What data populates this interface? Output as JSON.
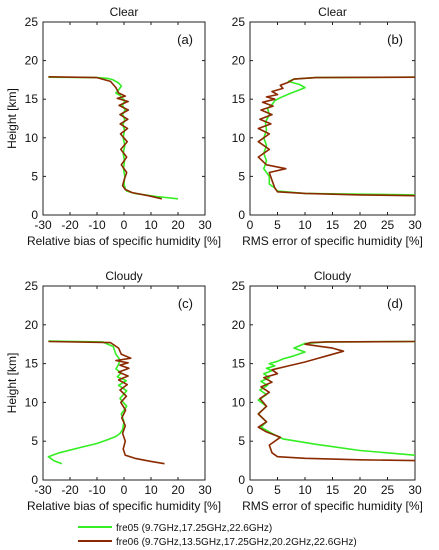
{
  "chart_data": [
    {
      "type": "line",
      "title": "Clear",
      "panel_label": "(a)",
      "xlabel": "Relative bias of specific humidity [%]",
      "ylabel": "Height [km]",
      "xlim": [
        -30,
        30
      ],
      "ylim": [
        0,
        25
      ],
      "xticks": [
        "-30",
        "-20",
        "-10",
        "0",
        "10",
        "20",
        "30"
      ],
      "yticks": [
        "0",
        "5",
        "10",
        "15",
        "20",
        "25"
      ],
      "grid": false,
      "series": [
        {
          "name": "fre05 (9.7GHz,17.25GHz,22.6GHz)",
          "color": "#33ee22",
          "x": [
            20,
            12,
            4,
            1,
            0.5,
            0,
            0.3,
            -0.2,
            0.2,
            -0.3,
            0.3,
            -0.3,
            0.2,
            -0.4,
            0.3,
            -0.5,
            0.4,
            -0.6,
            0.3,
            -0.8,
            -1.5,
            -3,
            -2,
            -1,
            -2,
            -4,
            -6,
            -10,
            -28
          ],
          "y": [
            2.1,
            2.4,
            2.8,
            3.1,
            3.4,
            4,
            5,
            6,
            7,
            8,
            9,
            10,
            11,
            11.7,
            12.3,
            13,
            13.6,
            14.2,
            14.8,
            15.2,
            15.5,
            15.8,
            16.2,
            16.7,
            17.1,
            17.5,
            17.7,
            17.8,
            17.85
          ]
        },
        {
          "name": "fre06 (9.7GHz,13.5GHz,17.25GHz,20.2GHz,22.6GHz)",
          "color": "#8b2a00",
          "x": [
            14,
            9,
            3,
            0.5,
            -0.5,
            0,
            1,
            -1,
            1,
            -1.2,
            1.2,
            -1.3,
            1.3,
            -1.4,
            1.4,
            -1.5,
            1.6,
            -1.8,
            1.5,
            -2.5,
            0.5,
            -2,
            -3,
            -5,
            -10,
            -28
          ],
          "y": [
            2.1,
            2.5,
            2.9,
            3.3,
            3.8,
            4.5,
            5.5,
            6.5,
            7.5,
            8.5,
            9.5,
            10.5,
            11.2,
            11.8,
            12.4,
            13,
            13.6,
            14.2,
            14.7,
            15.1,
            15.4,
            15.8,
            16.5,
            17.3,
            17.8,
            17.9
          ]
        }
      ]
    },
    {
      "type": "line",
      "title": "Clear",
      "panel_label": "(b)",
      "xlabel": "RMS error of specific humidity [%]",
      "ylabel": "",
      "xlim": [
        0,
        30
      ],
      "ylim": [
        0,
        25
      ],
      "xticks": [
        "0",
        "5",
        "10",
        "15",
        "20",
        "25",
        "30"
      ],
      "yticks": [
        "0",
        "5",
        "10",
        "15",
        "20",
        "25"
      ],
      "grid": false,
      "series": [
        {
          "name": "fre05 (9.7GHz,17.25GHz,22.6GHz)",
          "color": "#33ee22",
          "x": [
            30,
            20,
            10,
            5,
            4.5,
            3.5,
            3.5,
            2.5,
            3,
            2.5,
            3,
            2.5,
            3,
            2.8,
            3.5,
            3.2,
            4,
            4.5,
            5.5,
            6.5,
            7.5,
            9,
            10,
            9,
            8,
            7,
            8,
            12,
            30
          ],
          "y": [
            2.6,
            2.7,
            2.8,
            3.1,
            3.5,
            4,
            5,
            6,
            7,
            8,
            9,
            10,
            11,
            12,
            13,
            13.8,
            14.3,
            14.8,
            15.2,
            15.5,
            15.8,
            16.2,
            16.5,
            16.9,
            17.1,
            17.3,
            17.6,
            17.8,
            17.85
          ]
        },
        {
          "name": "fre06 (9.7GHz,13.5GHz,17.25GHz,20.2GHz,22.6GHz)",
          "color": "#8b2a00",
          "x": [
            30,
            20,
            10,
            5,
            4.5,
            4,
            3.5,
            6.5,
            3,
            1.5,
            3.5,
            1.5,
            3.5,
            1.5,
            3.8,
            1.8,
            4,
            2,
            4.2,
            2.3,
            4.5,
            3,
            5,
            4,
            6,
            5.5,
            7,
            8,
            12,
            30
          ],
          "y": [
            2.5,
            2.6,
            2.8,
            3,
            3.5,
            4.5,
            5.5,
            6,
            6.5,
            7.5,
            8.5,
            9.5,
            10.5,
            11.2,
            11.8,
            12.4,
            13,
            13.6,
            14.1,
            14.6,
            15,
            15.3,
            15.6,
            16,
            16.4,
            16.8,
            17.2,
            17.6,
            17.8,
            17.85
          ]
        }
      ]
    },
    {
      "type": "line",
      "title": "Cloudy",
      "panel_label": "(c)",
      "xlabel": "Relative bias of specific humidity [%]",
      "ylabel": "Height [km]",
      "xlim": [
        -30,
        30
      ],
      "ylim": [
        0,
        25
      ],
      "xticks": [
        "-30",
        "-20",
        "-10",
        "0",
        "10",
        "20",
        "30"
      ],
      "yticks": [
        "0",
        "5",
        "10",
        "15",
        "20",
        "25"
      ],
      "grid": false,
      "series": [
        {
          "name": "fre05 (9.7GHz,17.25GHz,22.6GHz)",
          "color": "#33ee22",
          "x": [
            -23,
            -26,
            -28,
            -24,
            -16,
            -10,
            -6,
            -3,
            -1.5,
            -0.5,
            0,
            -1,
            1,
            -1.5,
            1,
            -2,
            0.8,
            -2.5,
            -1,
            -3,
            -2,
            -1.5,
            -3,
            -4,
            -8,
            -28
          ],
          "y": [
            2.1,
            2.5,
            3,
            3.5,
            4.2,
            4.7,
            5.2,
            5.6,
            6,
            6.5,
            7.5,
            8.5,
            9.5,
            10.5,
            11.5,
            12.2,
            12.8,
            13.3,
            13.8,
            14.3,
            14.9,
            15.5,
            16.2,
            17.2,
            17.8,
            17.9
          ]
        },
        {
          "name": "fre06 (9.7GHz,13.5GHz,17.25GHz,20.2GHz,22.6GHz)",
          "color": "#8b2a00",
          "x": [
            15,
            10,
            4,
            0.5,
            -0.3,
            0.5,
            -0.5,
            0.5,
            -0.8,
            0.6,
            -1.2,
            0.9,
            -1.5,
            1.2,
            -2,
            1.5,
            -2,
            1.8,
            -1.5,
            1.5,
            -3,
            2.5,
            -1,
            -2,
            -5,
            -28
          ],
          "y": [
            2.1,
            2.4,
            2.8,
            3.2,
            4,
            5,
            6,
            7,
            8,
            9,
            10,
            10.8,
            11.6,
            12.3,
            12.9,
            13.4,
            13.9,
            14.4,
            14.8,
            15.1,
            15.4,
            15.7,
            16.2,
            17,
            17.7,
            17.85
          ]
        }
      ]
    },
    {
      "type": "line",
      "title": "Cloudy",
      "panel_label": "(d)",
      "xlabel": "RMS error of specific humidity [%]",
      "ylabel": "",
      "xlim": [
        0,
        30
      ],
      "ylim": [
        0,
        25
      ],
      "xticks": [
        "0",
        "5",
        "10",
        "15",
        "20",
        "25",
        "30"
      ],
      "yticks": [
        "0",
        "5",
        "10",
        "15",
        "20",
        "25"
      ],
      "grid": false,
      "series": [
        {
          "name": "fre05 (9.7GHz,17.25GHz,22.6GHz)",
          "color": "#33ee22",
          "x": [
            30,
            20,
            12,
            6,
            4.5,
            3.5,
            2,
            3,
            1.5,
            3,
            1.5,
            3,
            1.8,
            3.2,
            2,
            3.5,
            2.5,
            4,
            3,
            4.5,
            3.5,
            5,
            6,
            8,
            10,
            8,
            9,
            10,
            14,
            30
          ],
          "y": [
            3.2,
            3.8,
            4.6,
            5.3,
            5.8,
            6.2,
            6.8,
            7.5,
            8.5,
            9.5,
            10.3,
            11,
            11.6,
            12.2,
            12.7,
            13.2,
            13.7,
            14.1,
            14.4,
            14.7,
            15,
            15.3,
            15.6,
            16,
            16.5,
            17,
            17.3,
            17.6,
            17.8,
            17.85
          ]
        },
        {
          "name": "fre06 (9.7GHz,13.5GHz,17.25GHz,20.2GHz,22.6GHz)",
          "color": "#8b2a00",
          "x": [
            30,
            20,
            10,
            5,
            4,
            3.5,
            5.5,
            3,
            1.5,
            3,
            1.5,
            3,
            1.8,
            3.5,
            2,
            4,
            2.5,
            5,
            4,
            7,
            10,
            12,
            14,
            17,
            15,
            12,
            10,
            11,
            14,
            30
          ],
          "y": [
            2.5,
            2.6,
            2.8,
            3,
            3.5,
            4.5,
            5.5,
            6.2,
            6.8,
            7.5,
            8.5,
            9.5,
            10.5,
            11.3,
            12,
            12.6,
            13.2,
            13.7,
            14.2,
            14.7,
            15.2,
            15.6,
            16,
            16.6,
            17,
            17.3,
            17.5,
            17.7,
            17.8,
            17.85
          ]
        }
      ]
    }
  ],
  "legend": [
    {
      "label": "fre05 (9.7GHz,17.25GHz,22.6GHz)",
      "color": "#33ee22"
    },
    {
      "label": "fre06 (9.7GHz,13.5GHz,17.25GHz,20.2GHz,22.6GHz)",
      "color": "#8b2a00"
    }
  ]
}
